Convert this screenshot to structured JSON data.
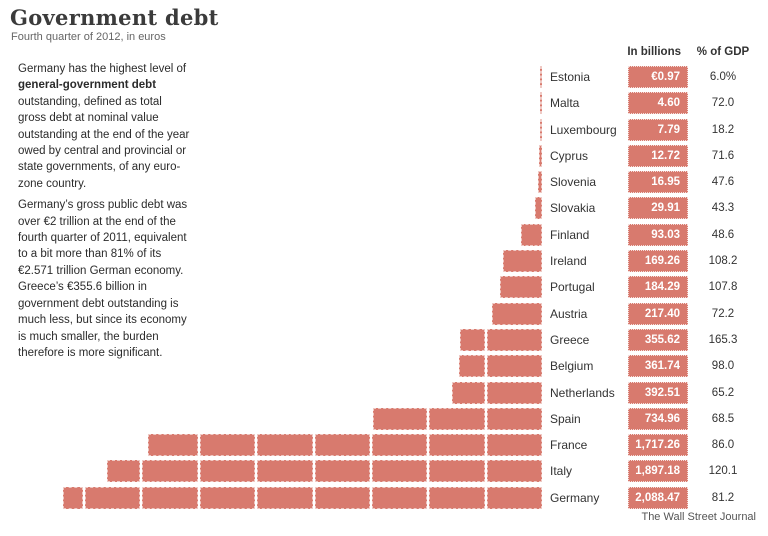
{
  "header": {
    "title": "Government debt",
    "subtitle": "Fourth quarter of 2012, in euros"
  },
  "description": {
    "para1_pre": "Germany has the highest level of ",
    "para1_bold": "general-government debt",
    "para1_post": " outstanding, defined as total gross debt at nominal value outstanding at the end of the year owed by central and provincial or state governments, of any euro-zone country.",
    "para2": "Germany’s gross public debt was over €2 trillion at the end of the fourth quarter of 2011, equivalent to a bit more than 81% of its €2.571 trillion German economy. Greece’s €355.6 billion in government debt outstanding is much less, but since its economy is much smaller, the burden therefore is more significant."
  },
  "table": {
    "col_billions": "In billions",
    "col_gdp": "% of GDP"
  },
  "credit": "The Wall Street Journal",
  "colors": {
    "bar": "#d87a6e",
    "value_text": "#ffffff"
  },
  "chart_data": {
    "type": "bar",
    "title": "Government debt",
    "subtitle": "Fourth quarter of 2012, in euros",
    "unit": "billions of euros",
    "orientation": "horizontal",
    "bar_segment_size_billions": 250,
    "legend_position": "none",
    "grid": false,
    "categories": [
      "Estonia",
      "Malta",
      "Luxembourg",
      "Cyprus",
      "Slovenia",
      "Slovakia",
      "Finland",
      "Ireland",
      "Portugal",
      "Austria",
      "Greece",
      "Belgium",
      "Netherlands",
      "Spain",
      "France",
      "Italy",
      "Germany"
    ],
    "series": [
      {
        "name": "Debt in billions of euros",
        "values": [
          0.97,
          4.6,
          7.79,
          12.72,
          16.95,
          29.91,
          93.03,
          169.26,
          184.29,
          217.4,
          355.62,
          361.74,
          392.51,
          734.96,
          1717.26,
          1897.18,
          2088.47
        ]
      },
      {
        "name": "% of GDP",
        "values": [
          6.0,
          72.0,
          18.2,
          71.6,
          47.6,
          43.3,
          48.6,
          108.2,
          107.8,
          72.2,
          165.3,
          98.0,
          65.2,
          68.5,
          86.0,
          120.1,
          81.2
        ]
      }
    ],
    "value_labels": [
      "€0.97",
      "4.60",
      "7.79",
      "12.72",
      "16.95",
      "29.91",
      "93.03",
      "169.26",
      "184.29",
      "217.40",
      "355.62",
      "361.74",
      "392.51",
      "734.96",
      "1,717.26",
      "1,897.18",
      "2,088.47"
    ],
    "gdp_labels": [
      "6.0%",
      "72.0",
      "18.2",
      "71.6",
      "47.6",
      "43.3",
      "48.6",
      "108.2",
      "107.8",
      "72.2",
      "165.3",
      "98.0",
      "65.2",
      "68.5",
      "86.0",
      "120.1",
      "81.2"
    ]
  }
}
